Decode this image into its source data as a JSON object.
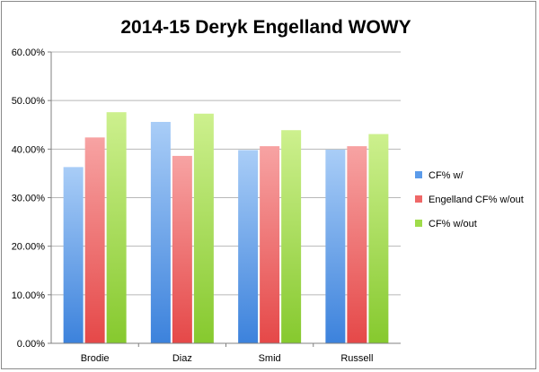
{
  "chart_data": {
    "type": "bar",
    "title": "2014-15 Deryk Engelland WOWY",
    "xlabel": "",
    "ylabel": "",
    "categories": [
      "Brodie",
      "Diaz",
      "Smid",
      "Russell"
    ],
    "series": [
      {
        "name": "CF% w/",
        "values": [
          36.3,
          45.6,
          39.8,
          39.9
        ],
        "color": "#5b9bea"
      },
      {
        "name": "Engelland CF% w/out",
        "values": [
          42.4,
          38.6,
          40.6,
          40.6
        ],
        "color": "#ef6868"
      },
      {
        "name": "CF% w/out",
        "values": [
          47.6,
          47.3,
          43.9,
          43.1
        ],
        "color": "#9fdc4a"
      }
    ],
    "ylim": [
      0,
      60
    ],
    "yticks": [
      "0.00%",
      "10.00%",
      "20.00%",
      "30.00%",
      "40.00%",
      "50.00%",
      "60.00%"
    ],
    "grid": true,
    "legend_position": "right"
  }
}
